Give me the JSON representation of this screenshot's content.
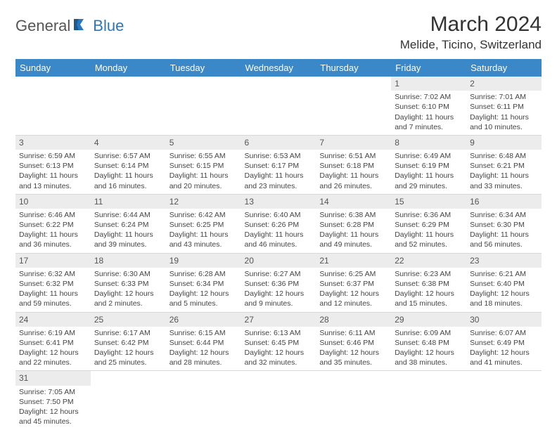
{
  "brand": {
    "part1": "General",
    "part2": "Blue",
    "logo_color": "#2b77bb"
  },
  "title": "March 2024",
  "location": "Melide, Ticino, Switzerland",
  "header_bg": "#3b88c9",
  "daynum_bg": "#ececec",
  "weekdays": [
    "Sunday",
    "Monday",
    "Tuesday",
    "Wednesday",
    "Thursday",
    "Friday",
    "Saturday"
  ],
  "weeks": [
    [
      null,
      null,
      null,
      null,
      null,
      {
        "n": "1",
        "sr": "Sunrise: 7:02 AM",
        "ss": "Sunset: 6:10 PM",
        "dl": "Daylight: 11 hours and 7 minutes."
      },
      {
        "n": "2",
        "sr": "Sunrise: 7:01 AM",
        "ss": "Sunset: 6:11 PM",
        "dl": "Daylight: 11 hours and 10 minutes."
      }
    ],
    [
      {
        "n": "3",
        "sr": "Sunrise: 6:59 AM",
        "ss": "Sunset: 6:13 PM",
        "dl": "Daylight: 11 hours and 13 minutes."
      },
      {
        "n": "4",
        "sr": "Sunrise: 6:57 AM",
        "ss": "Sunset: 6:14 PM",
        "dl": "Daylight: 11 hours and 16 minutes."
      },
      {
        "n": "5",
        "sr": "Sunrise: 6:55 AM",
        "ss": "Sunset: 6:15 PM",
        "dl": "Daylight: 11 hours and 20 minutes."
      },
      {
        "n": "6",
        "sr": "Sunrise: 6:53 AM",
        "ss": "Sunset: 6:17 PM",
        "dl": "Daylight: 11 hours and 23 minutes."
      },
      {
        "n": "7",
        "sr": "Sunrise: 6:51 AM",
        "ss": "Sunset: 6:18 PM",
        "dl": "Daylight: 11 hours and 26 minutes."
      },
      {
        "n": "8",
        "sr": "Sunrise: 6:49 AM",
        "ss": "Sunset: 6:19 PM",
        "dl": "Daylight: 11 hours and 29 minutes."
      },
      {
        "n": "9",
        "sr": "Sunrise: 6:48 AM",
        "ss": "Sunset: 6:21 PM",
        "dl": "Daylight: 11 hours and 33 minutes."
      }
    ],
    [
      {
        "n": "10",
        "sr": "Sunrise: 6:46 AM",
        "ss": "Sunset: 6:22 PM",
        "dl": "Daylight: 11 hours and 36 minutes."
      },
      {
        "n": "11",
        "sr": "Sunrise: 6:44 AM",
        "ss": "Sunset: 6:24 PM",
        "dl": "Daylight: 11 hours and 39 minutes."
      },
      {
        "n": "12",
        "sr": "Sunrise: 6:42 AM",
        "ss": "Sunset: 6:25 PM",
        "dl": "Daylight: 11 hours and 43 minutes."
      },
      {
        "n": "13",
        "sr": "Sunrise: 6:40 AM",
        "ss": "Sunset: 6:26 PM",
        "dl": "Daylight: 11 hours and 46 minutes."
      },
      {
        "n": "14",
        "sr": "Sunrise: 6:38 AM",
        "ss": "Sunset: 6:28 PM",
        "dl": "Daylight: 11 hours and 49 minutes."
      },
      {
        "n": "15",
        "sr": "Sunrise: 6:36 AM",
        "ss": "Sunset: 6:29 PM",
        "dl": "Daylight: 11 hours and 52 minutes."
      },
      {
        "n": "16",
        "sr": "Sunrise: 6:34 AM",
        "ss": "Sunset: 6:30 PM",
        "dl": "Daylight: 11 hours and 56 minutes."
      }
    ],
    [
      {
        "n": "17",
        "sr": "Sunrise: 6:32 AM",
        "ss": "Sunset: 6:32 PM",
        "dl": "Daylight: 11 hours and 59 minutes."
      },
      {
        "n": "18",
        "sr": "Sunrise: 6:30 AM",
        "ss": "Sunset: 6:33 PM",
        "dl": "Daylight: 12 hours and 2 minutes."
      },
      {
        "n": "19",
        "sr": "Sunrise: 6:28 AM",
        "ss": "Sunset: 6:34 PM",
        "dl": "Daylight: 12 hours and 5 minutes."
      },
      {
        "n": "20",
        "sr": "Sunrise: 6:27 AM",
        "ss": "Sunset: 6:36 PM",
        "dl": "Daylight: 12 hours and 9 minutes."
      },
      {
        "n": "21",
        "sr": "Sunrise: 6:25 AM",
        "ss": "Sunset: 6:37 PM",
        "dl": "Daylight: 12 hours and 12 minutes."
      },
      {
        "n": "22",
        "sr": "Sunrise: 6:23 AM",
        "ss": "Sunset: 6:38 PM",
        "dl": "Daylight: 12 hours and 15 minutes."
      },
      {
        "n": "23",
        "sr": "Sunrise: 6:21 AM",
        "ss": "Sunset: 6:40 PM",
        "dl": "Daylight: 12 hours and 18 minutes."
      }
    ],
    [
      {
        "n": "24",
        "sr": "Sunrise: 6:19 AM",
        "ss": "Sunset: 6:41 PM",
        "dl": "Daylight: 12 hours and 22 minutes."
      },
      {
        "n": "25",
        "sr": "Sunrise: 6:17 AM",
        "ss": "Sunset: 6:42 PM",
        "dl": "Daylight: 12 hours and 25 minutes."
      },
      {
        "n": "26",
        "sr": "Sunrise: 6:15 AM",
        "ss": "Sunset: 6:44 PM",
        "dl": "Daylight: 12 hours and 28 minutes."
      },
      {
        "n": "27",
        "sr": "Sunrise: 6:13 AM",
        "ss": "Sunset: 6:45 PM",
        "dl": "Daylight: 12 hours and 32 minutes."
      },
      {
        "n": "28",
        "sr": "Sunrise: 6:11 AM",
        "ss": "Sunset: 6:46 PM",
        "dl": "Daylight: 12 hours and 35 minutes."
      },
      {
        "n": "29",
        "sr": "Sunrise: 6:09 AM",
        "ss": "Sunset: 6:48 PM",
        "dl": "Daylight: 12 hours and 38 minutes."
      },
      {
        "n": "30",
        "sr": "Sunrise: 6:07 AM",
        "ss": "Sunset: 6:49 PM",
        "dl": "Daylight: 12 hours and 41 minutes."
      }
    ],
    [
      {
        "n": "31",
        "sr": "Sunrise: 7:05 AM",
        "ss": "Sunset: 7:50 PM",
        "dl": "Daylight: 12 hours and 45 minutes."
      },
      null,
      null,
      null,
      null,
      null,
      null
    ]
  ]
}
